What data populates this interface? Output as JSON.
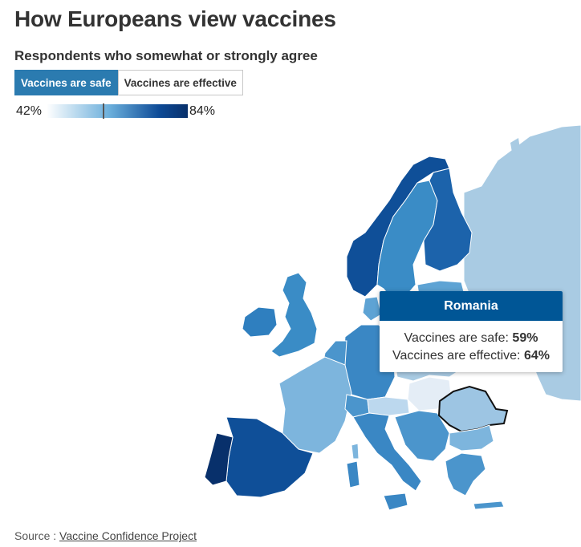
{
  "title": "How Europeans view vaccines",
  "subtitle": "Respondents who somewhat or strongly agree",
  "tabs": [
    {
      "label": "Vaccines are safe",
      "active": true
    },
    {
      "label": "Vaccines are effective",
      "active": false
    }
  ],
  "legend": {
    "min_label": "42%",
    "max_label": "84%",
    "min": 42,
    "max": 84,
    "marker_value": 59
  },
  "tooltip": {
    "country": "Romania",
    "safe_label": "Vaccines are safe:",
    "safe_value": "59%",
    "effective_label": "Vaccines are effective:",
    "effective_value": "64%"
  },
  "source": {
    "prefix": "Source : ",
    "link_text": "Vaccine Confidence Project"
  },
  "colors": {
    "active_tab": "#2b7bb0",
    "tooltip_header": "#005696",
    "scale_low": "#ffffff",
    "scale_high": "#08306b",
    "no_data": "#a9cbe3"
  }
}
